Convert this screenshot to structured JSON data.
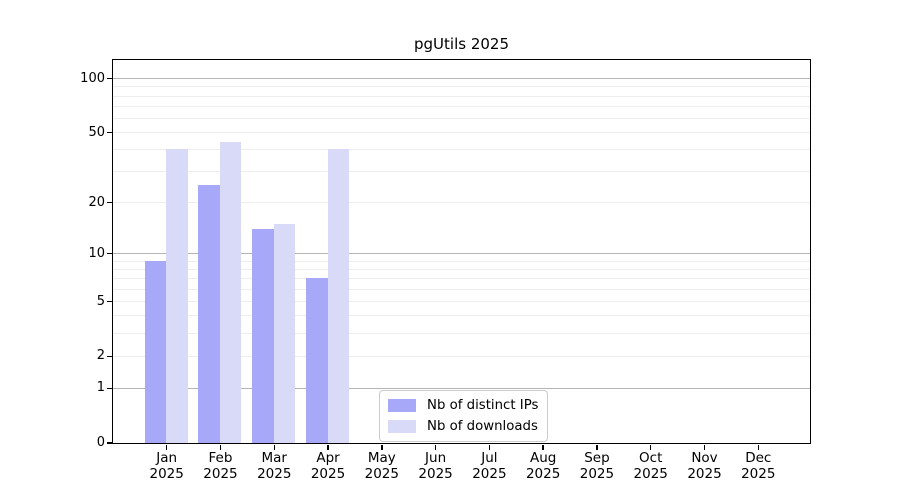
{
  "colors": {
    "distinct_ips_bar": "#a8a8f8",
    "downloads_bar": "#d9d9f8",
    "grid_major": "#b5b5b5",
    "grid_minor": "#ededed",
    "axis": "#000000",
    "legend_border": "#cccccc",
    "background": "#ffffff",
    "text": "#000000"
  },
  "chart_data": {
    "type": "bar",
    "title": "pgUtils 2025",
    "xlabel": "",
    "ylabel": "",
    "yscale": "log1p",
    "ylim": [
      0,
      128
    ],
    "grid": true,
    "legend_position": "lower center",
    "yticks": [
      0,
      1,
      2,
      5,
      10,
      20,
      50,
      100
    ],
    "categories": [
      "Jan 2025",
      "Feb 2025",
      "Mar 2025",
      "Apr 2025",
      "May 2025",
      "Jun 2025",
      "Jul 2025",
      "Aug 2025",
      "Sep 2025",
      "Oct 2025",
      "Nov 2025",
      "Dec 2025"
    ],
    "series": [
      {
        "name": "Nb of distinct IPs",
        "color": "#a8a8f8",
        "values": [
          9,
          25,
          14,
          7,
          null,
          null,
          null,
          null,
          null,
          null,
          null,
          null
        ]
      },
      {
        "name": "Nb of downloads",
        "color": "#d9d9f8",
        "values": [
          40,
          44,
          15,
          40,
          null,
          null,
          null,
          null,
          null,
          null,
          null,
          null
        ]
      }
    ]
  }
}
